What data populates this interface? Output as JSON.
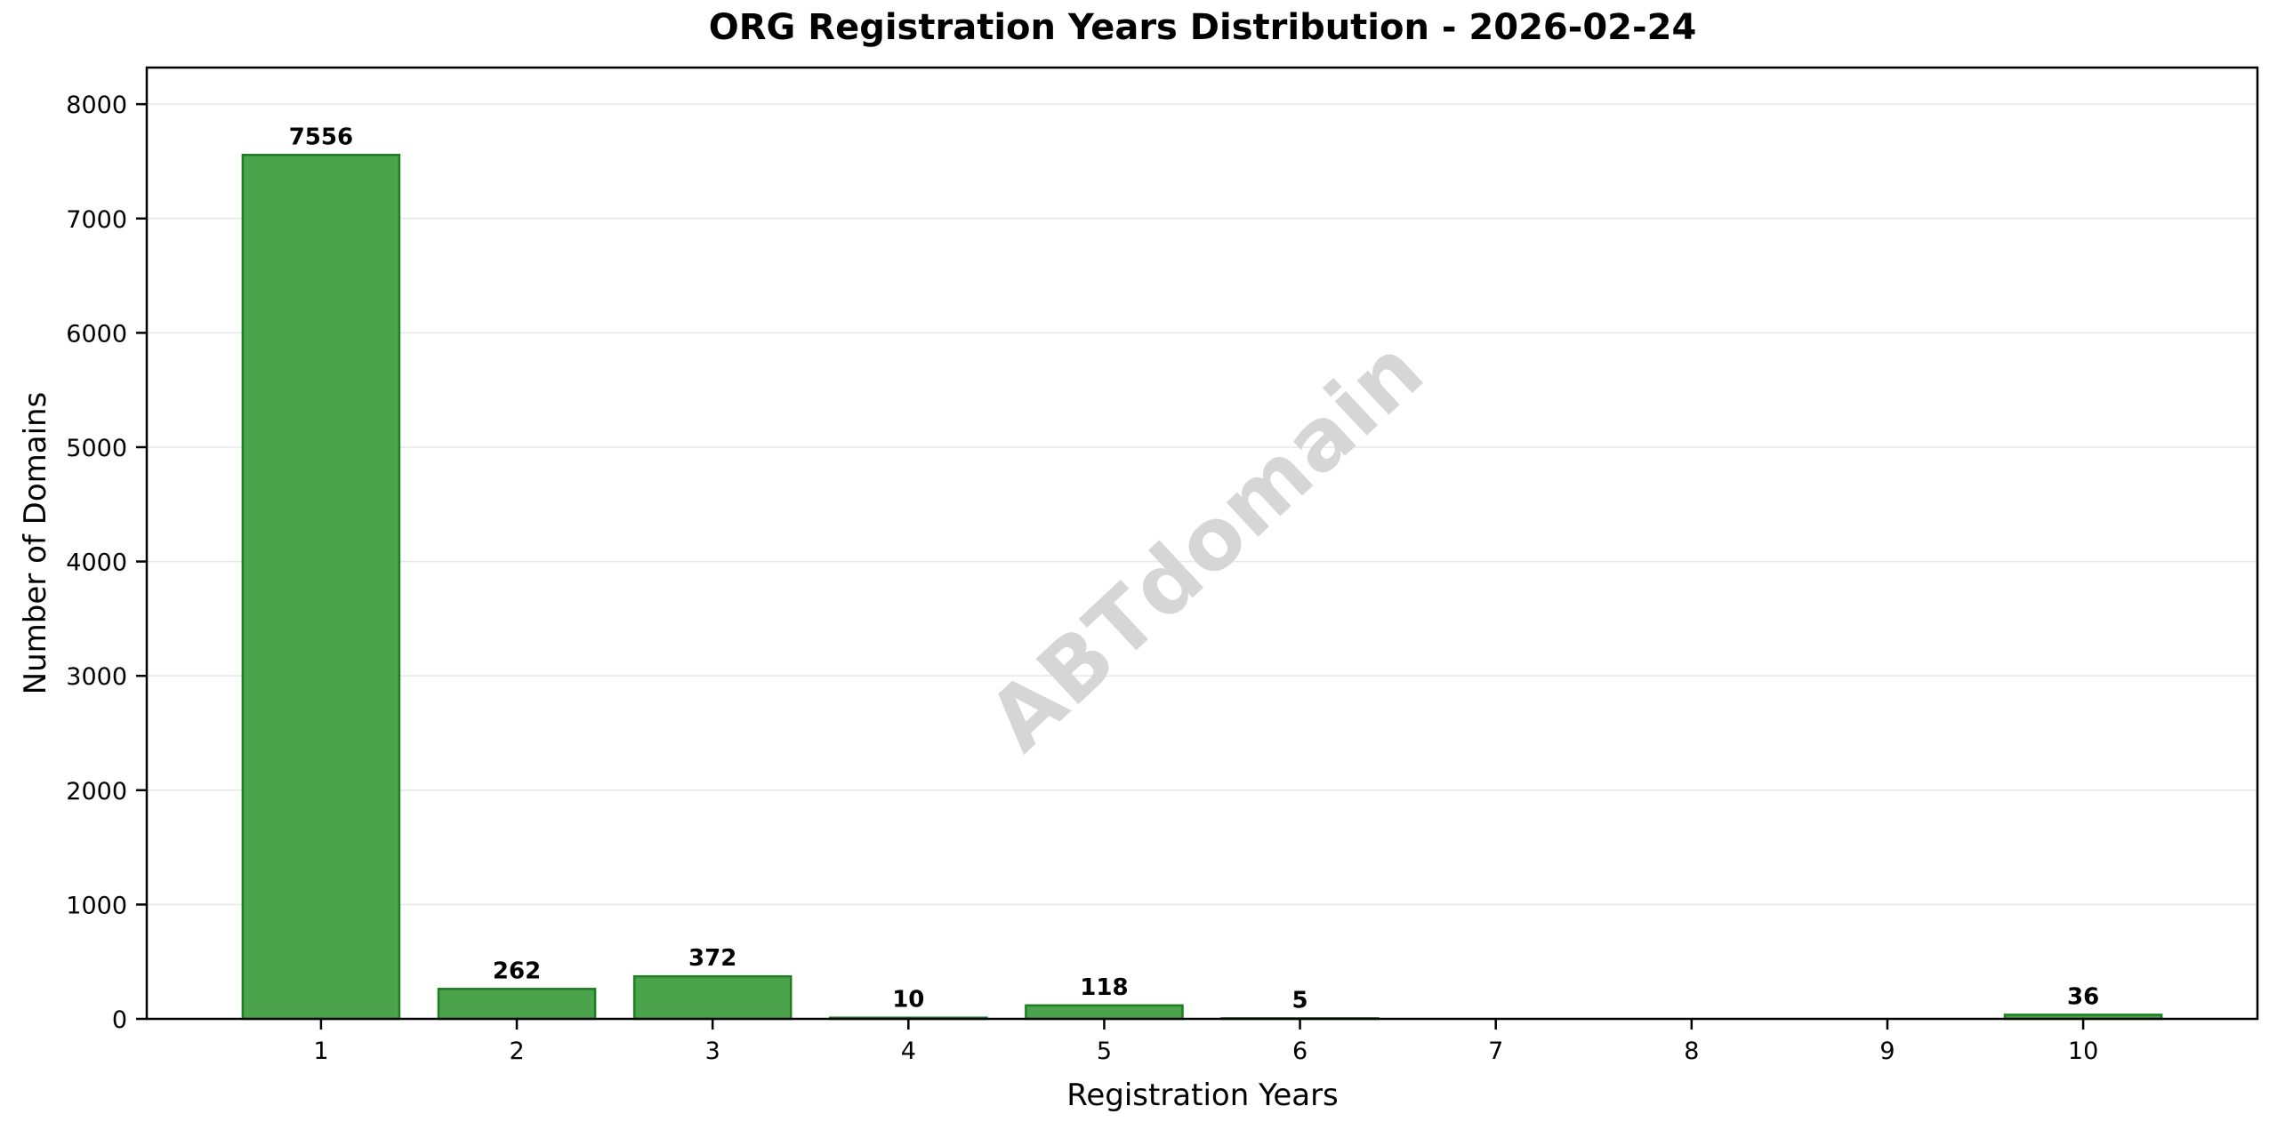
{
  "chart_data": {
    "type": "bar",
    "title": "ORG Registration Years Distribution - 2026-02-24",
    "xlabel": "Registration Years",
    "ylabel": "Number of Domains",
    "categories": [
      "1",
      "2",
      "3",
      "4",
      "5",
      "6",
      "7",
      "8",
      "9",
      "10"
    ],
    "values": [
      7556,
      262,
      372,
      10,
      118,
      5,
      0,
      0,
      0,
      36
    ],
    "bar_labels": [
      "7556",
      "262",
      "372",
      "10",
      "118",
      "5",
      "",
      "",
      "",
      "36"
    ],
    "yticks": [
      0,
      1000,
      2000,
      3000,
      4000,
      5000,
      6000,
      7000,
      8000
    ],
    "ytick_labels": [
      "0",
      "1000",
      "2000",
      "3000",
      "4000",
      "5000",
      "6000",
      "7000",
      "8000"
    ],
    "ylim": [
      0,
      8320
    ],
    "grid": "horizontal",
    "legend_position": "none",
    "colors": {
      "bar_fill": "#4ba44c",
      "bar_edge": "#1f7d22",
      "grid": "#e7e7e7",
      "axis": "#000000",
      "text": "#000000",
      "watermark": "#d6d6d6"
    },
    "watermark": {
      "text": "ABTdomain",
      "rotation_deg": -43
    }
  }
}
